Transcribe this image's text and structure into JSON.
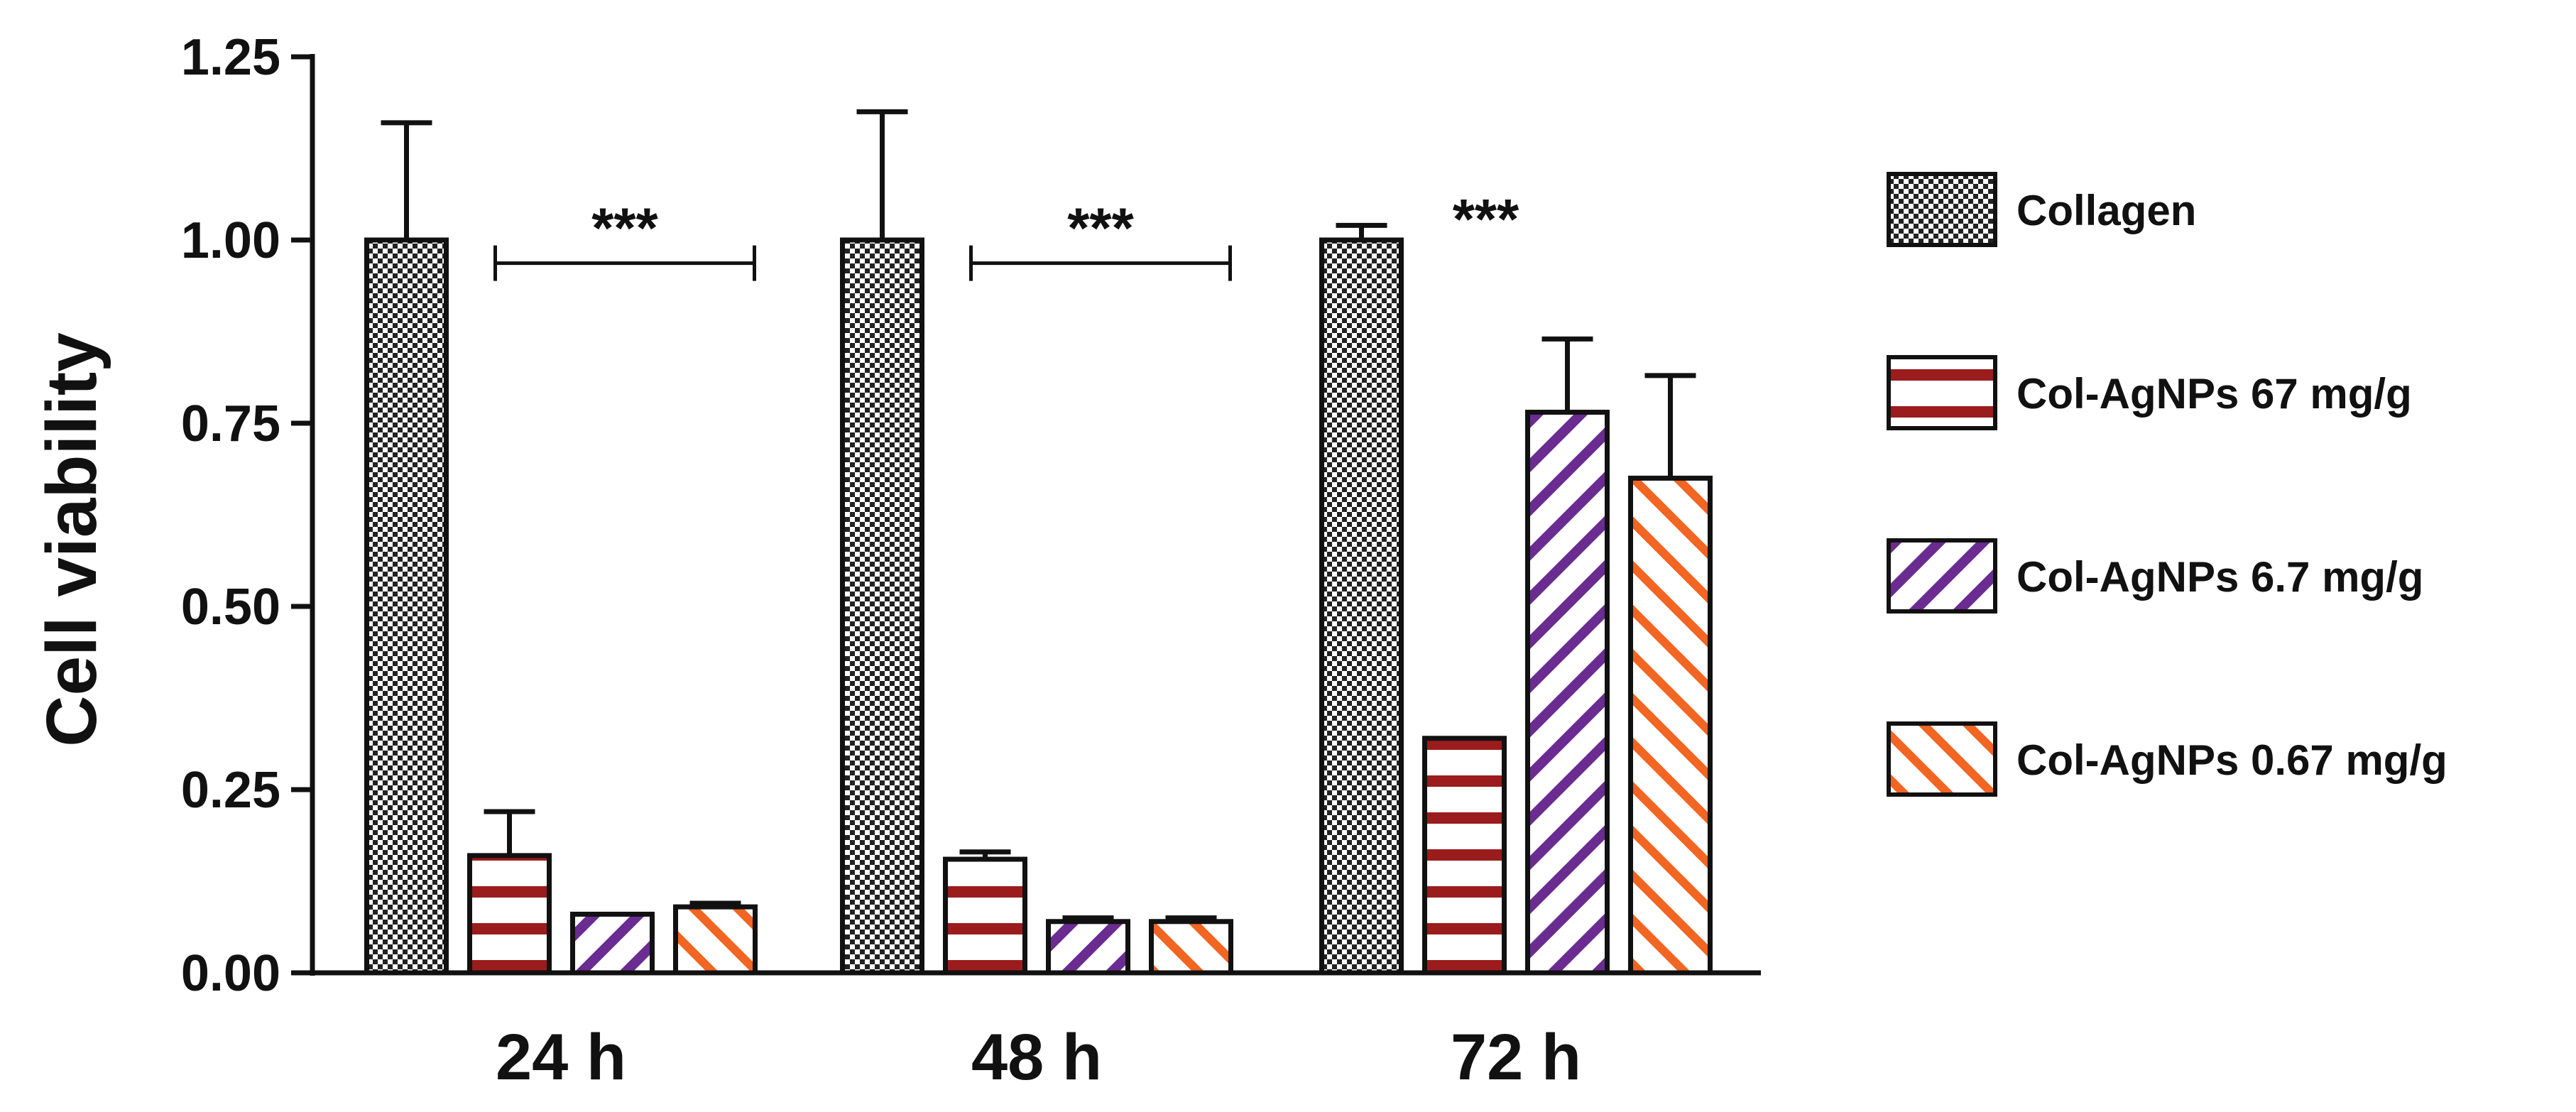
{
  "chart_data": {
    "type": "bar",
    "title": "",
    "xlabel": "",
    "ylabel": "Cell viability",
    "ylim": [
      0,
      1.25
    ],
    "yticks": [
      "0.00",
      "0.25",
      "0.50",
      "0.75",
      "1.00",
      "1.25"
    ],
    "categories": [
      "24 h",
      "48 h",
      "72 h"
    ],
    "series": [
      {
        "name": "Collagen",
        "values": [
          1.0,
          1.0,
          1.0
        ],
        "errors": [
          0.16,
          0.175,
          0.02
        ],
        "pattern": "checker",
        "color": "#222222"
      },
      {
        "name": "Col-AgNPs 67 mg/g",
        "values": [
          0.16,
          0.155,
          0.32
        ],
        "errors": [
          0.06,
          0.01,
          0.0
        ],
        "pattern": "horizontal",
        "color": "#9b1c1c"
      },
      {
        "name": "Col-AgNPs 6.7 mg/g",
        "values": [
          0.08,
          0.07,
          0.765
        ],
        "errors": [
          0.0,
          0.005,
          0.1
        ],
        "pattern": "diagonal-up",
        "color": "#6a2c91"
      },
      {
        "name": "Col-AgNPs 0.67 mg/g",
        "values": [
          0.09,
          0.07,
          0.675
        ],
        "errors": [
          0.005,
          0.005,
          0.14
        ],
        "pattern": "diagonal-down",
        "color": "#f26522"
      }
    ],
    "annotations": [
      {
        "text": "***",
        "category": 0,
        "bracket": true,
        "y": 0.98
      },
      {
        "text": "***",
        "category": 1,
        "bracket": true,
        "y": 0.98
      },
      {
        "text": "***",
        "category": 2,
        "bracket": false,
        "y": 1.0
      }
    ],
    "legend_position": "right",
    "grid": false
  }
}
